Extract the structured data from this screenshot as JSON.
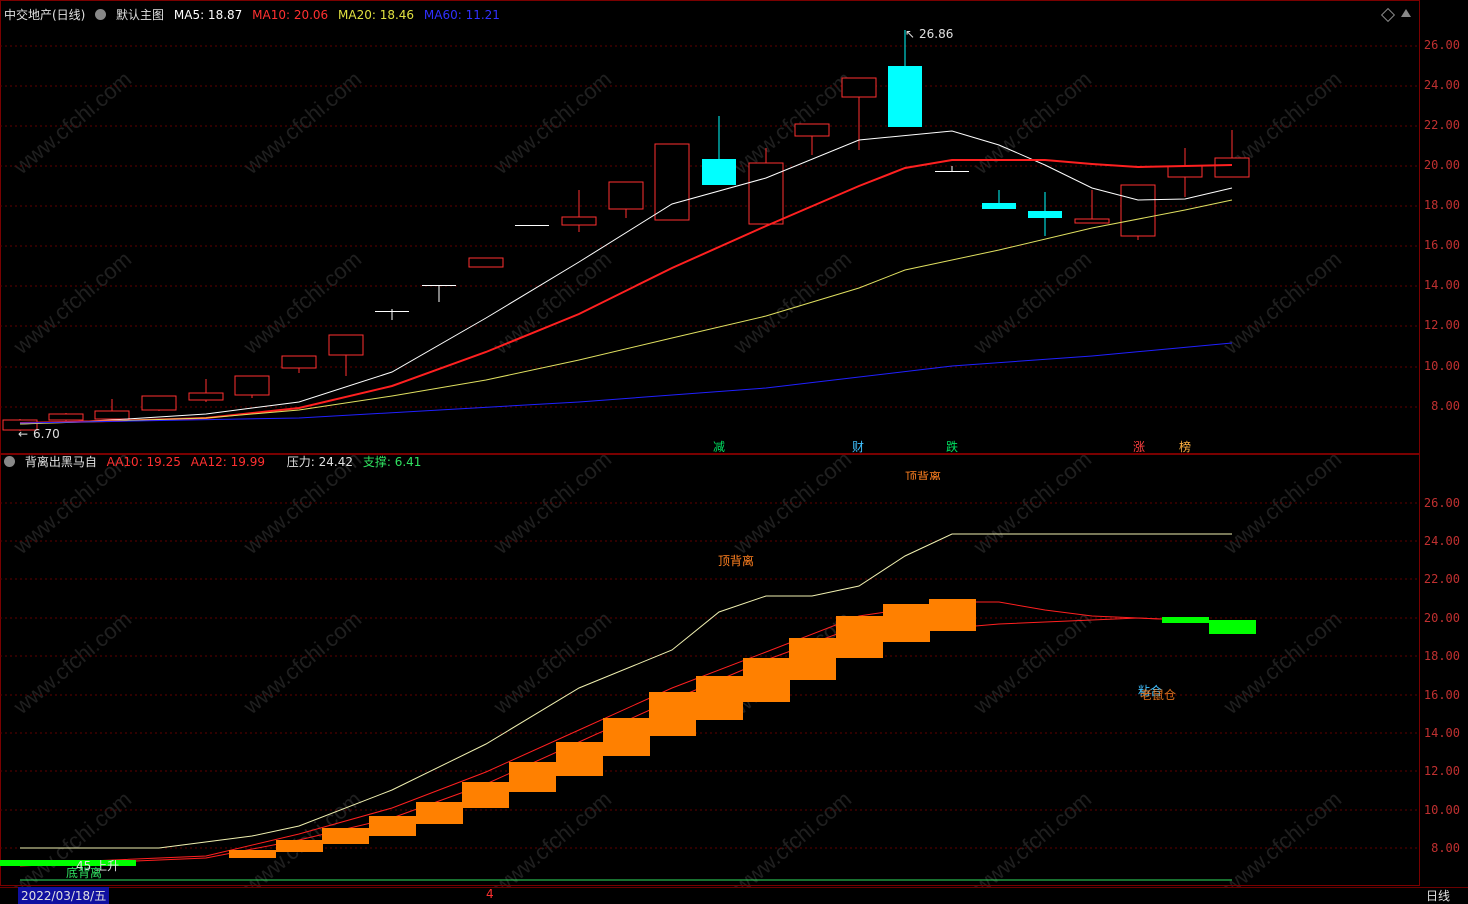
{
  "main_header": {
    "title": "中交地产(日线)",
    "template_icon": "gear-icon",
    "template_name": "默认主图",
    "ma5": "MA5: 18.87",
    "ma10": "MA10: 20.06",
    "ma20": "MA20: 18.46",
    "ma60": "MA60: 11.21"
  },
  "sub_header": {
    "title": "背离出黑马自",
    "aa10": "AA10: 19.25",
    "aa12": "AA12: 19.99",
    "pressure": "压力: 24.42",
    "support": "支撑: 6.41"
  },
  "main_axis": [
    "26.00",
    "24.00",
    "22.00",
    "20.00",
    "18.00",
    "16.00",
    "14.00",
    "12.00",
    "10.00",
    "8.00"
  ],
  "sub_axis": [
    "26.00",
    "24.00",
    "22.00",
    "20.00",
    "18.00",
    "16.00",
    "14.00",
    "12.00",
    "10.00",
    "8.00"
  ],
  "max_label": "26.86",
  "min_label": "6.70",
  "event_markers": [
    {
      "text": "减",
      "color": "#00e060"
    },
    {
      "text": "财",
      "color": "#40c0ff"
    },
    {
      "text": "跌",
      "color": "#00e060"
    },
    {
      "text": "涨",
      "color": "#ff4040"
    },
    {
      "text": "榜",
      "color": "#ffb040"
    }
  ],
  "sub_labels": {
    "top_divergence_1": "顶背离",
    "top_divergence_2": "顶背离",
    "bottom_divergence": "底背离",
    "up_label": "45 上升",
    "merge_label": "粘合",
    "merge_label_2": "老鼠仓"
  },
  "watermark": "www.cfchi.com",
  "date_label": "2022/03/18/五",
  "mid_marker": "4",
  "period_label": "日线",
  "colors": {
    "up": "#ff3030",
    "down": "#00ffff",
    "ma5": "#ffffff",
    "ma10": "#ff2020",
    "ma20": "#e0e060",
    "ma60": "#2020ff",
    "orange": "#ff8000",
    "green": "#00ff00"
  }
}
